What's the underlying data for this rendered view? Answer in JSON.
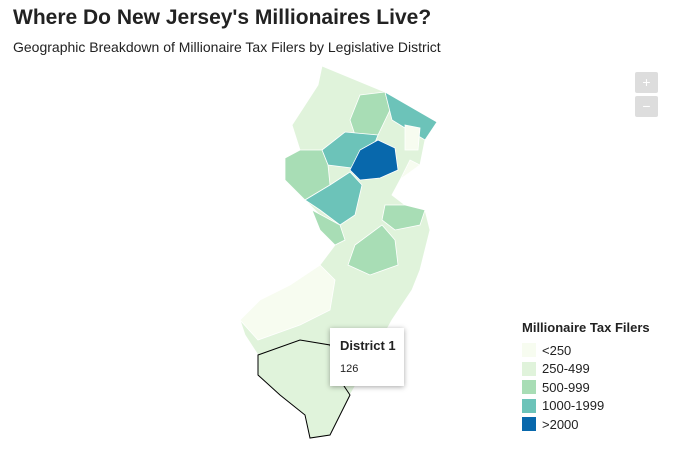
{
  "title": "Where Do New Jersey's Millionaires Live?",
  "subtitle": "Geographic Breakdown of Millionaire Tax Filers by Legislative District",
  "zoom_controls": [
    "+",
    "−"
  ],
  "legend": {
    "title": "Millionaire Tax Filers",
    "items": [
      {
        "label": "<250",
        "color": "#f7fcf0"
      },
      {
        "label": "250-499",
        "color": "#e0f3db"
      },
      {
        "label": "500-999",
        "color": "#a8ddb5"
      },
      {
        "label": "1000-1999",
        "color": "#6cc3b9"
      },
      {
        "label": ">2000",
        "color": "#0868ac"
      }
    ]
  },
  "tooltip": {
    "title": "District 1",
    "value": 126
  }
}
